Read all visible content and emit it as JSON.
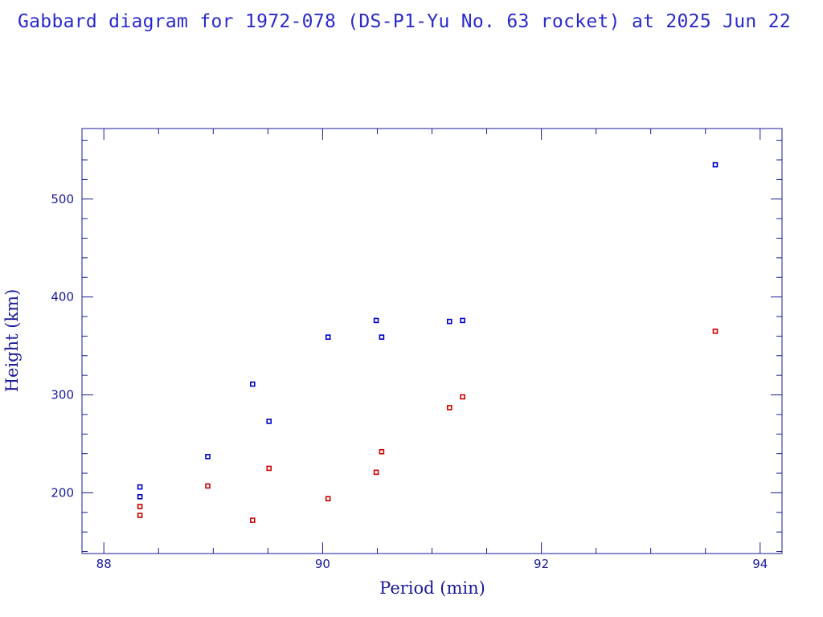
{
  "title": "Gabbard diagram for 1972-078 (DS-P1-Yu No. 63 rocket) at 2025 Jun 22",
  "chart_data": {
    "type": "scatter",
    "title": "Gabbard diagram for 1972-078 (DS-P1-Yu No. 63 rocket) at 2025 Jun 22",
    "xlabel": "Period (min)",
    "ylabel": "Height (km)",
    "xlim": [
      87.8,
      94.2
    ],
    "ylim": [
      138,
      572
    ],
    "x_major_ticks": [
      88,
      90,
      92,
      94
    ],
    "x_minor_step": 0.5,
    "y_major_ticks": [
      200,
      300,
      400,
      500
    ],
    "y_minor_step": 20,
    "grid": false,
    "colors": {
      "frame": "#1a1a99",
      "apogee": "#0000cc",
      "perigee": "#cc0000"
    },
    "series": [
      {
        "role": "apogee",
        "color": "#0000cc",
        "points": [
          [
            88.33,
            206
          ],
          [
            88.33,
            196
          ],
          [
            88.95,
            237
          ],
          [
            89.36,
            311
          ],
          [
            89.51,
            273
          ],
          [
            90.05,
            359
          ],
          [
            90.49,
            376
          ],
          [
            90.54,
            359
          ],
          [
            91.16,
            375
          ],
          [
            91.28,
            376
          ],
          [
            93.59,
            535
          ]
        ]
      },
      {
        "role": "perigee",
        "color": "#cc0000",
        "points": [
          [
            88.33,
            186
          ],
          [
            88.33,
            177
          ],
          [
            88.95,
            207
          ],
          [
            89.36,
            172
          ],
          [
            89.51,
            225
          ],
          [
            90.05,
            194
          ],
          [
            90.49,
            221
          ],
          [
            90.54,
            242
          ],
          [
            91.16,
            287
          ],
          [
            91.28,
            298
          ],
          [
            93.59,
            365
          ]
        ]
      }
    ]
  }
}
